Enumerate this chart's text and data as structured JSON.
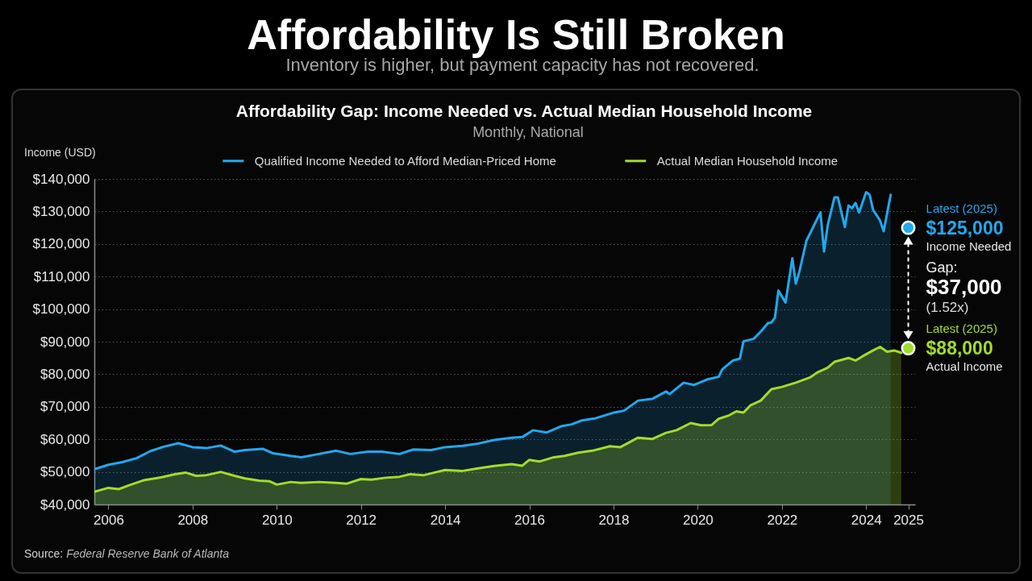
{
  "chart_data": {
    "type": "area",
    "title": "Affordability Gap: Income Needed vs. Actual Median Household Income",
    "subtitle": "Monthly, National",
    "ylabel": "Income (USD)",
    "legend": "top",
    "grid": "y",
    "xlim": [
      "2005-09",
      "2025-03"
    ],
    "xticks": [
      "2006",
      "2008",
      "2010",
      "2012",
      "2014",
      "2016",
      "2018",
      "2020",
      "2022",
      "2024",
      "2025"
    ],
    "ylim": [
      40000,
      140000
    ],
    "yticks": [
      {
        "value": 40000,
        "label": "$40,000"
      },
      {
        "value": 50000,
        "label": "$50,000"
      },
      {
        "value": 60000,
        "label": "$60,000"
      },
      {
        "value": 70000,
        "label": "$70,000"
      },
      {
        "value": 80000,
        "label": "$80,000"
      },
      {
        "value": 90000,
        "label": "$90,000"
      },
      {
        "value": 100000,
        "label": "$100,000"
      },
      {
        "value": 110000,
        "label": "$110,000"
      },
      {
        "value": 120000,
        "label": "$120,000"
      },
      {
        "value": 130000,
        "label": "$130,000"
      },
      {
        "value": 140000,
        "label": "$140,000"
      }
    ],
    "series": [
      {
        "name": "Qualified Income Needed to Afford Median-Priced Home",
        "color": "#22a8ee",
        "x": [
          "2005-09",
          "2006-01",
          "2006-05",
          "2006-09",
          "2007-01",
          "2007-05",
          "2007-09",
          "2008-01",
          "2008-05",
          "2008-09",
          "2009-01",
          "2009-04",
          "2009-09",
          "2009-12",
          "2010-05",
          "2010-08",
          "2011-01",
          "2011-06",
          "2011-10",
          "2012-03",
          "2012-07",
          "2012-12",
          "2013-04",
          "2013-09",
          "2014-01",
          "2014-06",
          "2014-10",
          "2015-03",
          "2015-08",
          "2015-11",
          "2016-02",
          "2016-06",
          "2016-10",
          "2017-01",
          "2017-04",
          "2017-08",
          "2018-01",
          "2018-04",
          "2018-08",
          "2018-12",
          "2019-04",
          "2019-05",
          "2019-09",
          "2019-12",
          "2020-04",
          "2020-07",
          "2020-08",
          "2020-11",
          "2021-01",
          "2021-02",
          "2021-05",
          "2021-07",
          "2021-09",
          "2021-10",
          "2021-11",
          "2021-12",
          "2022-02",
          "2022-04",
          "2022-05",
          "2022-06",
          "2022-08",
          "2022-11",
          "2022-12",
          "2023-01",
          "2023-02",
          "2023-04",
          "2023-05",
          "2023-07",
          "2023-08",
          "2023-09",
          "2023-10",
          "2023-11",
          "2024-01",
          "2024-02",
          "2024-03",
          "2024-04",
          "2024-05",
          "2024-06",
          "2024-08"
        ],
        "values": [
          50800,
          52200,
          53000,
          54200,
          56400,
          57800,
          58800,
          57600,
          57300,
          58100,
          56200,
          56700,
          57100,
          55700,
          54900,
          54500,
          55500,
          56500,
          55500,
          56200,
          56200,
          55500,
          56900,
          56700,
          57600,
          58000,
          58600,
          59800,
          60500,
          60700,
          62800,
          62100,
          64000,
          64600,
          65800,
          66500,
          68200,
          68800,
          71900,
          72400,
          74700,
          73900,
          77400,
          76700,
          78500,
          79200,
          81500,
          84200,
          84800,
          90100,
          90900,
          93100,
          95700,
          95900,
          97400,
          105700,
          102000,
          115600,
          107800,
          111500,
          121000,
          127600,
          129700,
          117700,
          125600,
          134300,
          134300,
          125200,
          131800,
          131000,
          132600,
          129700,
          135900,
          135100,
          130500,
          128900,
          127200,
          123900,
          135100
        ]
      },
      {
        "name": "Actual Median Household Income",
        "color": "#a2dc2c",
        "x": [
          "2005-09",
          "2006-01",
          "2006-04",
          "2006-07",
          "2006-11",
          "2007-04",
          "2007-08",
          "2007-11",
          "2008-02",
          "2008-05",
          "2008-09",
          "2009-01",
          "2009-04",
          "2009-08",
          "2009-11",
          "2010-01",
          "2010-05",
          "2010-08",
          "2011-01",
          "2011-06",
          "2011-09",
          "2012-01",
          "2012-04",
          "2012-08",
          "2012-12",
          "2013-03",
          "2013-07",
          "2013-10",
          "2014-01",
          "2014-06",
          "2014-10",
          "2015-03",
          "2015-08",
          "2015-11",
          "2016-01",
          "2016-04",
          "2016-08",
          "2016-11",
          "2017-03",
          "2017-07",
          "2017-12",
          "2018-03",
          "2018-08",
          "2018-12",
          "2019-04",
          "2019-07",
          "2019-11",
          "2020-02",
          "2020-05",
          "2020-07",
          "2020-10",
          "2020-12",
          "2021-02",
          "2021-04",
          "2021-07",
          "2021-10",
          "2022-01",
          "2022-05",
          "2022-09",
          "2022-11",
          "2023-02",
          "2023-04",
          "2023-08",
          "2023-10",
          "2023-12",
          "2024-03",
          "2024-05",
          "2024-07",
          "2024-09",
          "2024-11"
        ],
        "values": [
          43900,
          45100,
          44700,
          45900,
          47400,
          48300,
          49300,
          49800,
          48800,
          49000,
          50000,
          48800,
          48000,
          47300,
          47100,
          46100,
          46900,
          46600,
          46900,
          46600,
          46400,
          47800,
          47600,
          48200,
          48500,
          49300,
          49000,
          49800,
          50600,
          50300,
          51000,
          51800,
          52400,
          51900,
          53700,
          53200,
          54500,
          54900,
          55900,
          56500,
          57900,
          57600,
          60500,
          60100,
          62000,
          62800,
          65000,
          64300,
          64400,
          66300,
          67400,
          68600,
          68200,
          70400,
          71900,
          75400,
          76100,
          77400,
          79000,
          80500,
          82000,
          83800,
          85000,
          84200,
          85500,
          87300,
          88400,
          86900,
          87300,
          86600
        ]
      }
    ],
    "annotations": [
      "Affordability Is Still Broken",
      "Inventory is higher, but payment capacity has not recovered.",
      "Latest (2025)",
      {
        "text": "$125,000",
        "x": "2025-01",
        "y": 125000
      },
      "Income Needed",
      "Gap:",
      "$37,000",
      "(1.52x)",
      "Latest (2025)",
      {
        "text": "$88,000",
        "x": "2025-01",
        "y": 88000
      },
      "Actual Income",
      "Source: Federal Reserve Bank of Atlanta"
    ]
  }
}
